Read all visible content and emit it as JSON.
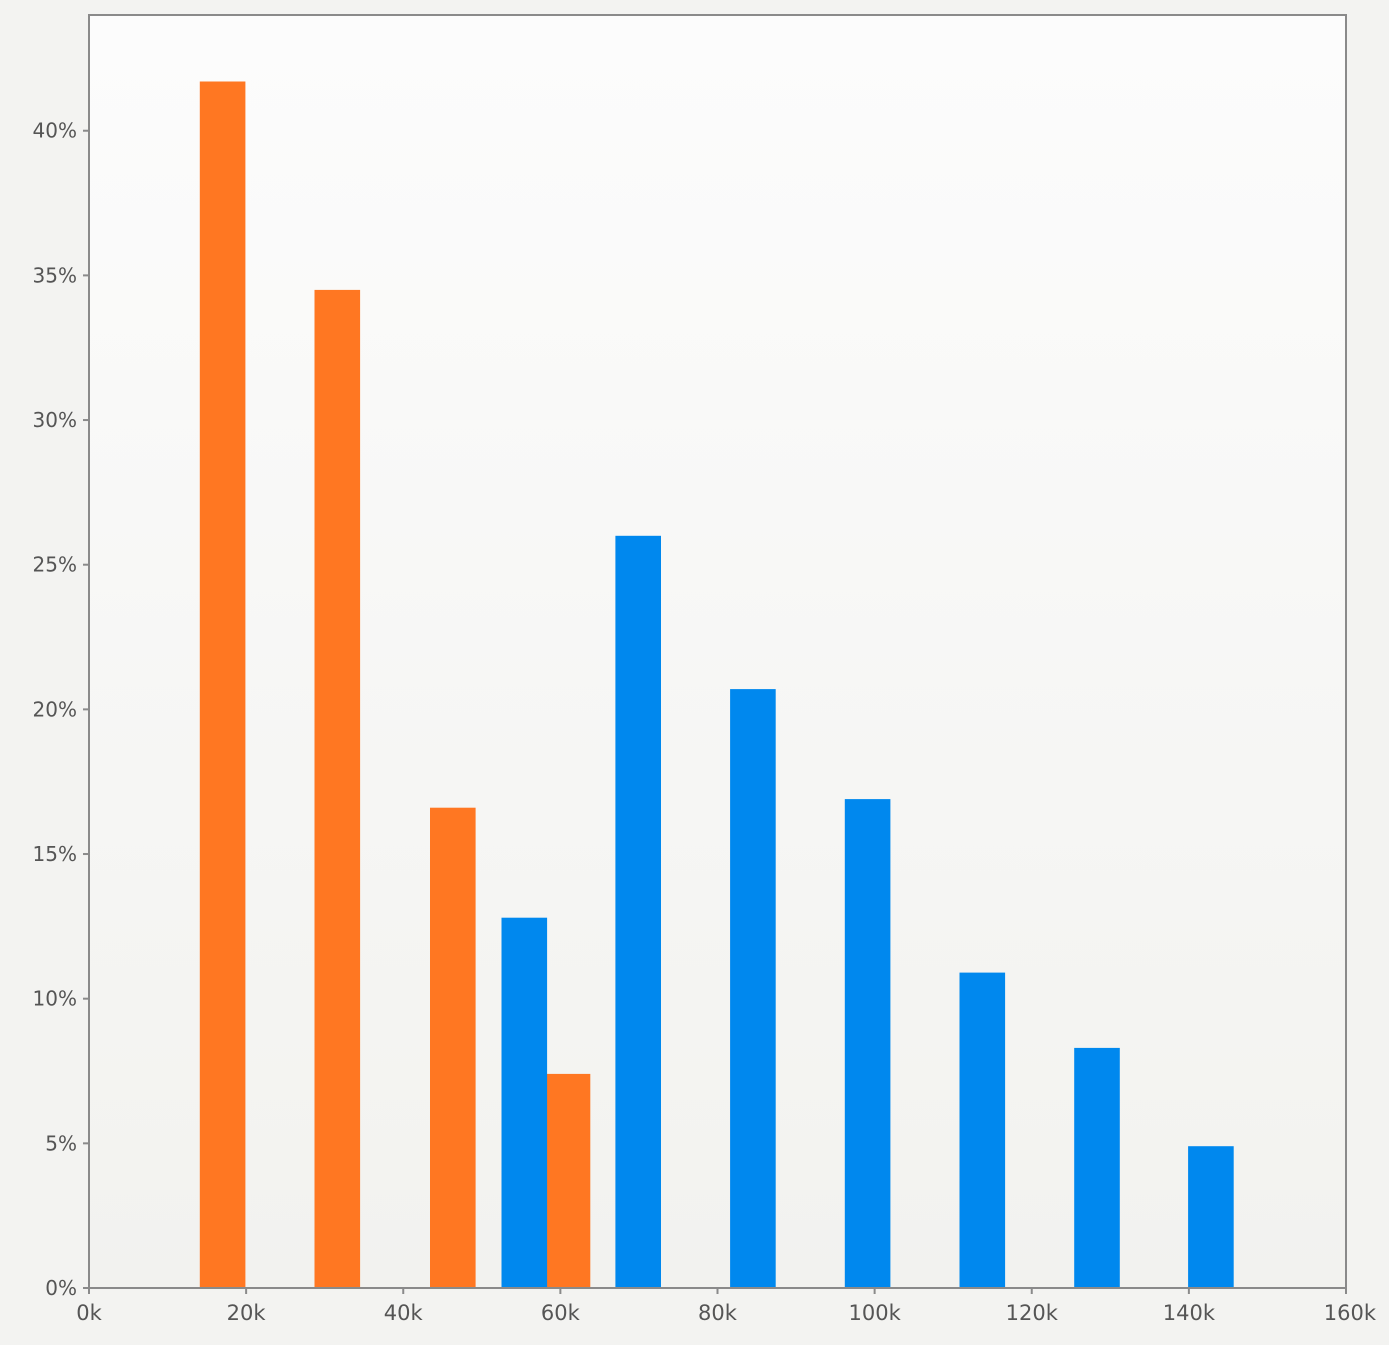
{
  "chart_data": {
    "type": "bar",
    "title": "",
    "xlabel": "",
    "ylabel": "",
    "xlim": [
      0,
      160000
    ],
    "ylim": [
      0,
      44
    ],
    "grid": false,
    "legend": "none",
    "x_ticks": [
      {
        "value": 0,
        "label": "0k"
      },
      {
        "value": 20000,
        "label": "20k"
      },
      {
        "value": 40000,
        "label": "40k"
      },
      {
        "value": 60000,
        "label": "60k"
      },
      {
        "value": 80000,
        "label": "80k"
      },
      {
        "value": 100000,
        "label": "100k"
      },
      {
        "value": 120000,
        "label": "120k"
      },
      {
        "value": 140000,
        "label": "140k"
      },
      {
        "value": 160000,
        "label": "160k"
      }
    ],
    "y_ticks": [
      {
        "value": 0,
        "label": "0%"
      },
      {
        "value": 5,
        "label": "5%"
      },
      {
        "value": 10,
        "label": "10%"
      },
      {
        "value": 15,
        "label": "15%"
      },
      {
        "value": 20,
        "label": "20%"
      },
      {
        "value": 25,
        "label": "25%"
      },
      {
        "value": 30,
        "label": "30%"
      },
      {
        "value": 35,
        "label": "35%"
      },
      {
        "value": 40,
        "label": "40%"
      }
    ],
    "bar_width": 5800,
    "series": [
      {
        "color": "#ff7722",
        "points": [
          {
            "x": 17000,
            "y": 41.7
          },
          {
            "x": 31600,
            "y": 34.5
          },
          {
            "x": 46300,
            "y": 16.6
          },
          {
            "x": 60900,
            "y": 7.4
          }
        ]
      },
      {
        "color": "#0088ee",
        "points": [
          {
            "x": 55400,
            "y": 12.8
          },
          {
            "x": 69900,
            "y": 26.0
          },
          {
            "x": 84500,
            "y": 20.7
          },
          {
            "x": 99100,
            "y": 16.9
          },
          {
            "x": 113700,
            "y": 10.9
          },
          {
            "x": 128300,
            "y": 8.3
          },
          {
            "x": 142800,
            "y": 4.9
          }
        ]
      }
    ]
  }
}
